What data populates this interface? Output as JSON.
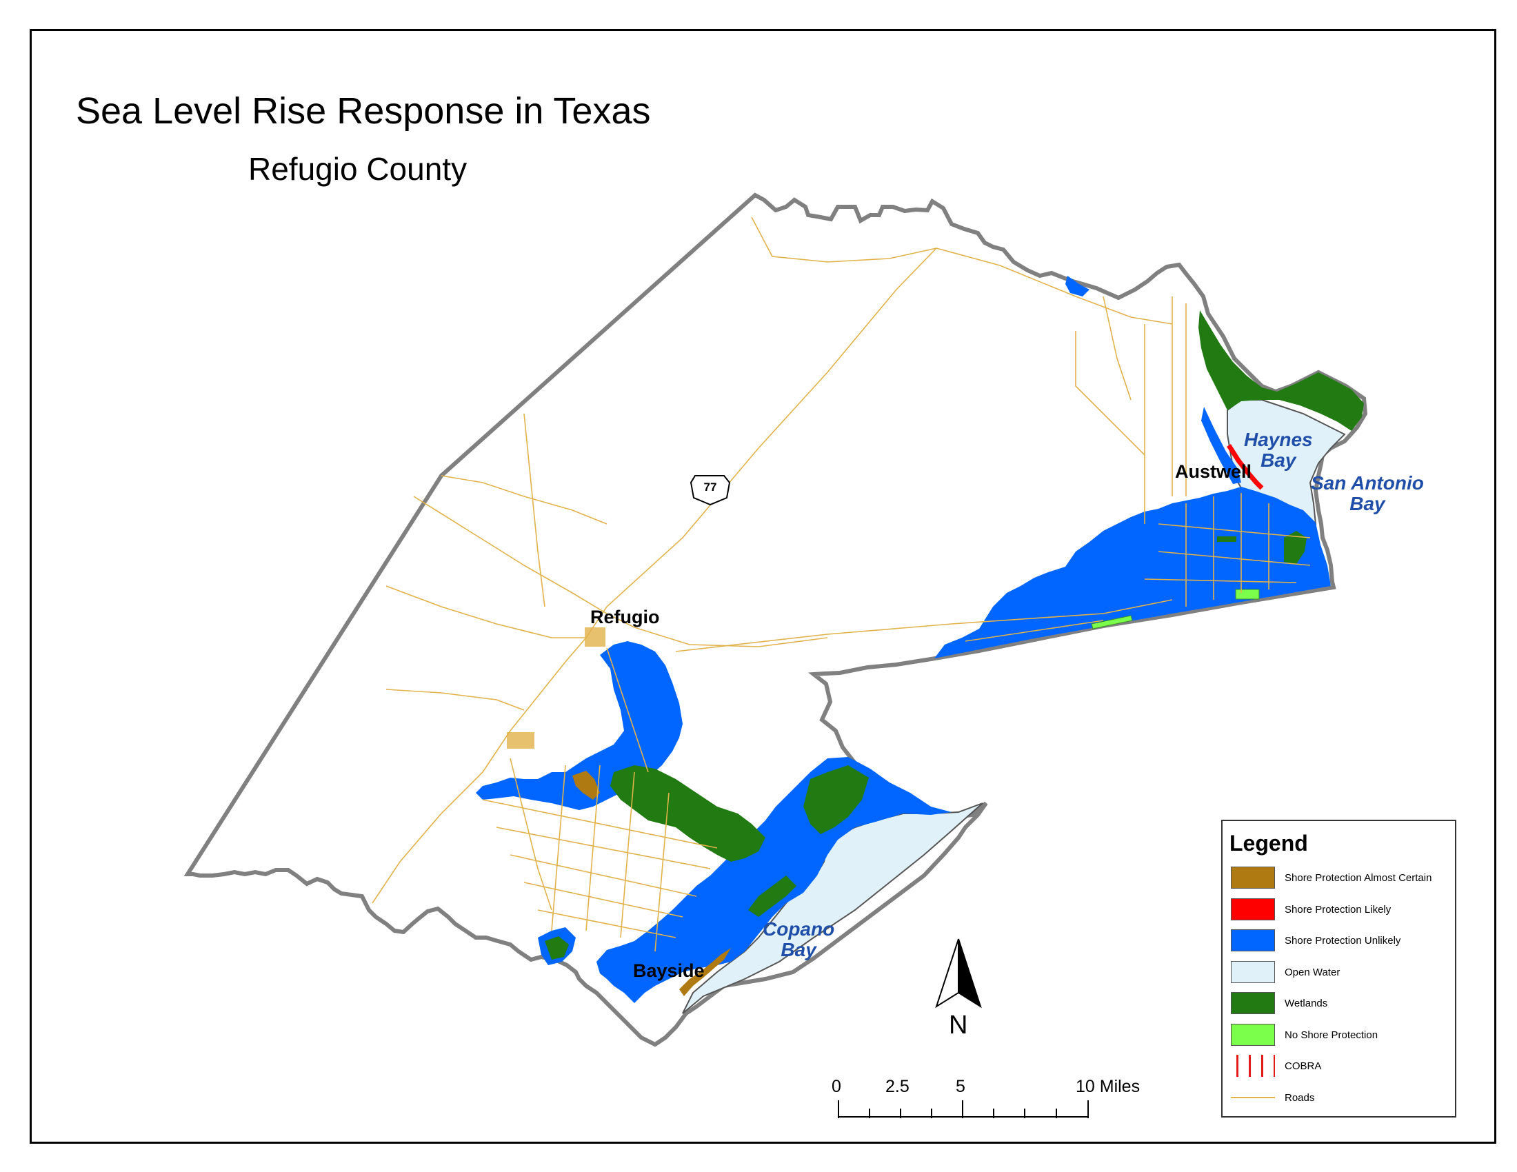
{
  "title": "Sea Level Rise Response in Texas",
  "subtitle": "Refugio County",
  "places": {
    "refugio": "Refugio",
    "austwell": "Austwell",
    "bayside": "Bayside"
  },
  "water_bodies": {
    "haynes_bay": [
      "Haynes",
      "Bay"
    ],
    "san_antonio_bay": [
      "San Antonio",
      "Bay"
    ],
    "copano_bay": [
      "Copano",
      "Bay"
    ]
  },
  "highway_shield": "77",
  "legend": {
    "title": "Legend",
    "items": [
      {
        "label": "Shore Protection Almost Certain",
        "color": "#b07a12",
        "type": "fill"
      },
      {
        "label": "Shore Protection Likely",
        "color": "#ff0000",
        "type": "fill"
      },
      {
        "label": "Shore Protection Unlikely",
        "color": "#0066ff",
        "type": "fill"
      },
      {
        "label": "Open Water",
        "color": "#e1f1f9",
        "type": "fill"
      },
      {
        "label": "Wetlands",
        "color": "#217a12",
        "type": "fill"
      },
      {
        "label": "No Shore Protection",
        "color": "#7cff4a",
        "type": "fill"
      },
      {
        "label": "COBRA",
        "color": "#e21b1b",
        "type": "hatch"
      },
      {
        "label": "Roads",
        "color": "#e2b24a",
        "type": "line"
      }
    ]
  },
  "scale_bar": {
    "ticks": [
      "0",
      "2.5",
      "5",
      "10 Miles"
    ]
  },
  "north_arrow": "N",
  "colors": {
    "county_border": "#808080",
    "roads": "#e2b24a",
    "shore_unlikely": "#0066ff",
    "wetlands": "#217a12",
    "open_water": "#e1f1f9",
    "almost_certain": "#b07a12",
    "likely": "#ff0000",
    "no_protection": "#7cff4a",
    "water_label": "#1f4fa8"
  }
}
